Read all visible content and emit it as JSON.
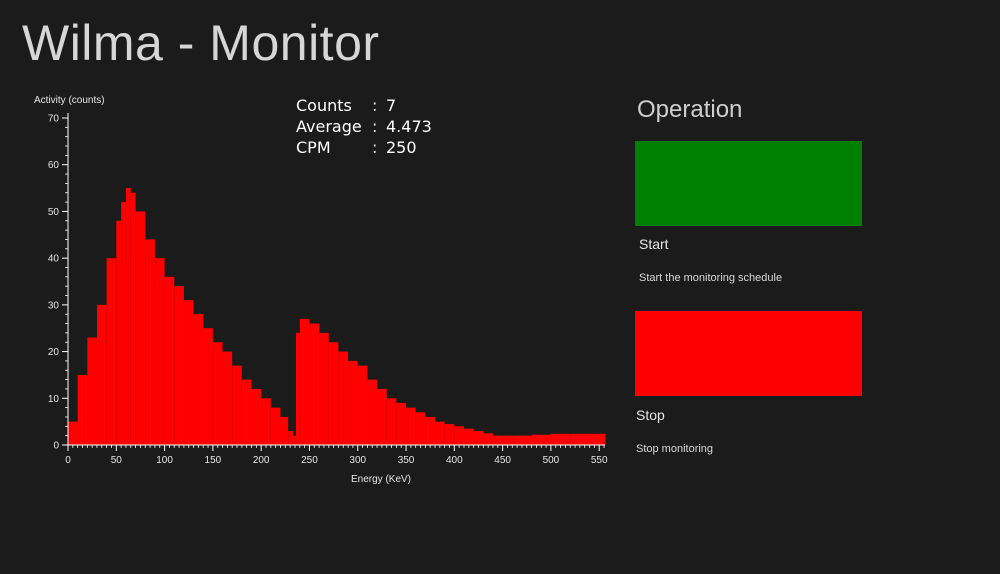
{
  "app": {
    "title": "Wilma - Monitor"
  },
  "stats": {
    "counts_label": "Counts",
    "counts_value": "7",
    "average_label": "Average",
    "average_value": "4.473",
    "cpm_label": "CPM",
    "cpm_value": "250",
    "separator": ":"
  },
  "operation": {
    "heading": "Operation",
    "start": {
      "label": "Start",
      "description": "Start the monitoring schedule",
      "color": "#008000"
    },
    "stop": {
      "label": "Stop",
      "description": "Stop monitoring",
      "color": "#ff0000"
    }
  },
  "chart_data": {
    "type": "bar",
    "xlabel": "Energy (KeV)",
    "ylabel": "Activity (counts)",
    "xlim": [
      0,
      556
    ],
    "ylim": [
      0,
      70
    ],
    "x_ticks": [
      0,
      50,
      100,
      150,
      200,
      250,
      300,
      350,
      400,
      450,
      500,
      550
    ],
    "y_ticks": [
      0,
      10,
      20,
      30,
      40,
      50,
      60,
      70
    ],
    "bar_color": "#ff0000",
    "grid": false,
    "series": [
      {
        "x": [
          0,
          10,
          20,
          30,
          40,
          50,
          55,
          60,
          65,
          70,
          80,
          90,
          100,
          110,
          120,
          130,
          140,
          150,
          160,
          170,
          180,
          190,
          200,
          210,
          220,
          228,
          233,
          236,
          240,
          250,
          260,
          270,
          280,
          290,
          300,
          310,
          320,
          330,
          340,
          350,
          360,
          370,
          380,
          390,
          400,
          410,
          420,
          430,
          440,
          450,
          460,
          480,
          500,
          520,
          540,
          556
        ],
        "values": [
          5,
          15,
          23,
          30,
          40,
          48,
          52,
          55,
          54,
          50,
          44,
          40,
          36,
          34,
          31,
          28,
          25,
          22,
          20,
          17,
          14,
          12,
          10,
          8,
          6,
          3,
          2,
          24,
          27,
          26,
          24,
          22,
          20,
          18,
          17,
          14,
          12,
          10,
          9,
          8,
          7,
          6,
          5,
          4.5,
          4,
          3.5,
          3,
          2.5,
          2,
          2,
          2,
          2.2,
          2.4,
          2.4,
          2.4,
          2.4
        ]
      }
    ]
  }
}
